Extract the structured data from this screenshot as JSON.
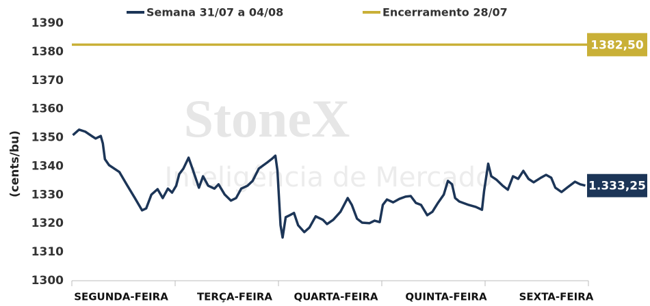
{
  "chart_data": {
    "type": "line",
    "y_label": "(cents/bu)",
    "watermark": [
      "StoneX",
      "Inteligência de Mercado"
    ],
    "categories": [
      "SEGUNDA-FEIRA",
      "TERÇA-FEIRA",
      "QUARTA-FEIRA",
      "QUINTA-FEIRA",
      "SEXTA-FEIRA"
    ],
    "xlim": [
      0,
      5
    ],
    "xticks": [
      0,
      1,
      2,
      3,
      4,
      5
    ],
    "ylim": [
      1300,
      1390
    ],
    "yticks": [
      1300,
      1310,
      1320,
      1330,
      1340,
      1350,
      1360,
      1370,
      1380,
      1390
    ],
    "grid": false,
    "legend": "top",
    "series": [
      {
        "name": "Semana 31/07 a 04/08",
        "color": "#1c3557",
        "end_label": "1.333,25",
        "x": [
          0.01,
          0.07,
          0.13,
          0.2,
          0.23,
          0.28,
          0.3,
          0.32,
          0.36,
          0.46,
          0.53,
          0.61,
          0.68,
          0.72,
          0.77,
          0.83,
          0.88,
          0.93,
          0.97,
          1.01,
          1.04,
          1.08,
          1.13,
          1.17,
          1.23,
          1.27,
          1.32,
          1.38,
          1.42,
          1.48,
          1.54,
          1.59,
          1.64,
          1.7,
          1.75,
          1.81,
          1.89,
          1.94,
          1.97,
          1.99,
          2.02,
          2.04,
          2.07,
          2.11,
          2.15,
          2.19,
          2.25,
          2.3,
          2.36,
          2.43,
          2.47,
          2.53,
          2.6,
          2.67,
          2.71,
          2.76,
          2.81,
          2.88,
          2.93,
          2.98,
          3.01,
          3.05,
          3.11,
          3.17,
          3.23,
          3.28,
          3.33,
          3.38,
          3.44,
          3.49,
          3.54,
          3.6,
          3.64,
          3.68,
          3.71,
          3.75,
          3.84,
          3.91,
          3.97,
          3.99,
          4.03,
          4.06,
          4.11,
          4.17,
          4.22,
          4.27,
          4.32,
          4.37,
          4.42,
          4.47,
          4.54,
          4.59,
          4.64,
          4.68,
          4.74,
          4.8,
          4.87,
          4.92,
          4.97
        ],
        "values": [
          1350.9,
          1352.8,
          1352.1,
          1350.4,
          1349.7,
          1350.6,
          1348,
          1342.5,
          1340.4,
          1338,
          1333.7,
          1328.9,
          1324.6,
          1325.3,
          1330.1,
          1332,
          1328.9,
          1332.2,
          1330.8,
          1333.2,
          1337.3,
          1339.2,
          1343,
          1338.9,
          1332.5,
          1336.5,
          1333.2,
          1332.2,
          1333.7,
          1330.1,
          1328,
          1328.9,
          1332.2,
          1333.2,
          1334.9,
          1339.2,
          1341.3,
          1342.7,
          1343.7,
          1338.5,
          1319.4,
          1315.1,
          1322.2,
          1322.9,
          1323.7,
          1319.4,
          1317,
          1318.6,
          1322.5,
          1321.3,
          1319.8,
          1321.3,
          1324.1,
          1328.9,
          1326.5,
          1321.7,
          1320.3,
          1320.1,
          1321,
          1320.5,
          1326.5,
          1328.4,
          1327.4,
          1328.6,
          1329.4,
          1329.6,
          1327.2,
          1326.5,
          1322.9,
          1324.1,
          1327,
          1330.1,
          1334.9,
          1333.7,
          1328.9,
          1327.7,
          1326.5,
          1325.8,
          1324.8,
          1331.3,
          1340.9,
          1336.5,
          1335.3,
          1333.2,
          1331.8,
          1336.5,
          1335.6,
          1338.4,
          1335.6,
          1334.4,
          1336,
          1337,
          1336,
          1332.5,
          1331,
          1332.7,
          1334.6,
          1333.7,
          1333.25
        ]
      },
      {
        "name": "Encerramento 28/07",
        "color": "#c9b037",
        "end_label": "1382,50",
        "x": [
          0,
          5
        ],
        "values": [
          1382.5,
          1382.5
        ]
      }
    ]
  }
}
